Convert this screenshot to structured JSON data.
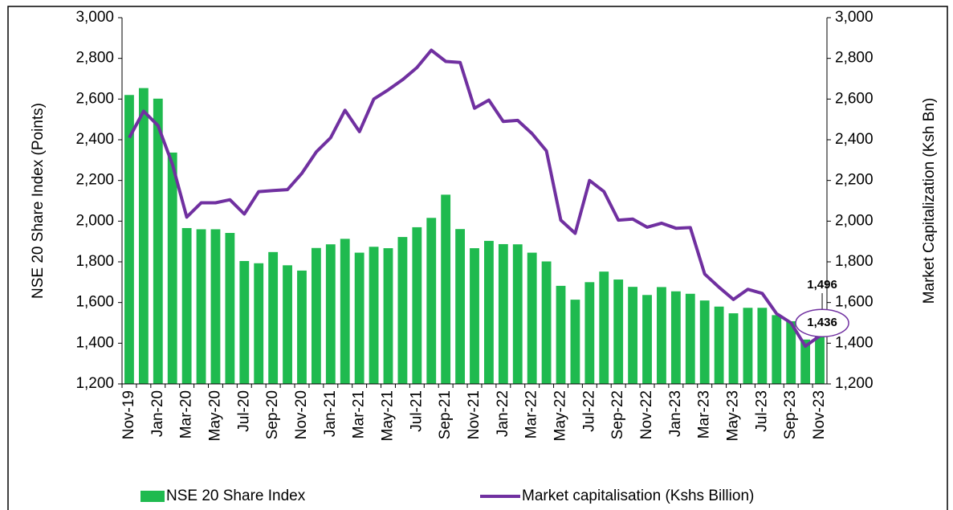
{
  "chart_data": {
    "type": "combo",
    "categories": [
      "Nov-19",
      null,
      "Jan-20",
      null,
      "Mar-20",
      null,
      "May-20",
      null,
      "Jul-20",
      null,
      "Sep-20",
      null,
      "Nov-20",
      null,
      "Jan-21",
      null,
      "Mar-21",
      null,
      "May-21",
      null,
      "Jul-21",
      null,
      "Sep-21",
      null,
      "Nov-21",
      null,
      "Jan-22",
      null,
      "Mar-22",
      null,
      "May-22",
      null,
      "Jul-22",
      null,
      "Sep-22",
      null,
      "Nov-22",
      null,
      "Jan-23",
      null,
      "Mar-23",
      null,
      "May-23",
      null,
      "Jul-23",
      null,
      "Sep-23",
      null,
      "Nov-23"
    ],
    "series": [
      {
        "name": "NSE 20 Share Index",
        "type": "bar",
        "axis": "y",
        "color": "#1fba4f",
        "values": [
          2620,
          2654,
          2602,
          2337,
          1966,
          1960,
          1960,
          1942,
          1804,
          1793,
          1848,
          1783,
          1757,
          1868,
          1886,
          1913,
          1845,
          1874,
          1867,
          1922,
          1970,
          2016,
          2130,
          1961,
          1867,
          1903,
          1887,
          1886,
          1845,
          1802,
          1682,
          1614,
          1700,
          1752,
          1713,
          1677,
          1637,
          1676,
          1655,
          1643,
          1610,
          1580,
          1547,
          1574,
          1574,
          1538,
          1508,
          1418,
          1496
        ],
        "value_labels": [
          null,
          null,
          null,
          null,
          null,
          null,
          null,
          null,
          null,
          null,
          null,
          null,
          null,
          null,
          null,
          null,
          null,
          null,
          null,
          null,
          null,
          null,
          null,
          null,
          null,
          null,
          null,
          null,
          null,
          null,
          null,
          null,
          null,
          null,
          null,
          null,
          null,
          null,
          null,
          null,
          null,
          null,
          null,
          null,
          null,
          null,
          null,
          null,
          "1,496"
        ]
      },
      {
        "name": "Market capitalisation (Kshs Billion)",
        "type": "line",
        "axis": "y2",
        "color": "#7030a0",
        "values": [
          2410,
          2540,
          2470,
          2280,
          2020,
          2090,
          2090,
          2105,
          2035,
          2145,
          2150,
          2155,
          2235,
          2340,
          2410,
          2545,
          2440,
          2600,
          2645,
          2695,
          2755,
          2840,
          2785,
          2780,
          2555,
          2595,
          2490,
          2495,
          2430,
          2345,
          2005,
          1940,
          2200,
          2145,
          2005,
          2010,
          1970,
          1990,
          1965,
          1968,
          1740,
          1675,
          1615,
          1665,
          1645,
          1545,
          1500,
          1385,
          1436
        ],
        "value_labels": [
          null,
          null,
          null,
          null,
          null,
          null,
          null,
          null,
          null,
          null,
          null,
          null,
          null,
          null,
          null,
          null,
          null,
          null,
          null,
          null,
          null,
          null,
          null,
          null,
          null,
          null,
          null,
          null,
          null,
          null,
          null,
          null,
          null,
          null,
          null,
          null,
          null,
          null,
          null,
          null,
          null,
          null,
          null,
          null,
          null,
          null,
          null,
          null,
          "1,436"
        ]
      }
    ],
    "y_label": "NSE 20 Share Index (Points)",
    "y2_label": "Market Capitalization (Ksh Bn)",
    "ylim": [
      1200,
      3000
    ],
    "yticks": [
      {
        "value": 1200,
        "label": "1,200"
      },
      {
        "value": 1400,
        "label": "1,400"
      },
      {
        "value": 1600,
        "label": "1,600"
      },
      {
        "value": 1800,
        "label": "1,800"
      },
      {
        "value": 2000,
        "label": "2,000"
      },
      {
        "value": 2200,
        "label": "2,200"
      },
      {
        "value": 2400,
        "label": "2,400"
      },
      {
        "value": 2600,
        "label": "2,600"
      },
      {
        "value": 2800,
        "label": "2,800"
      },
      {
        "value": 3000,
        "label": "3,000"
      }
    ],
    "y2lim": [
      1200,
      3000
    ],
    "y2ticks": [
      {
        "value": 1200,
        "label": "1,200"
      },
      {
        "value": 1400,
        "label": "1,400"
      },
      {
        "value": 1600,
        "label": "1,600"
      },
      {
        "value": 1800,
        "label": "1,800"
      },
      {
        "value": 2000,
        "label": "2,000"
      },
      {
        "value": 2200,
        "label": "2,200"
      },
      {
        "value": 2400,
        "label": "2,400"
      },
      {
        "value": 2600,
        "label": "2,600"
      },
      {
        "value": 2800,
        "label": "2,800"
      },
      {
        "value": 3000,
        "label": "3,000"
      }
    ],
    "legend": "bottom"
  }
}
